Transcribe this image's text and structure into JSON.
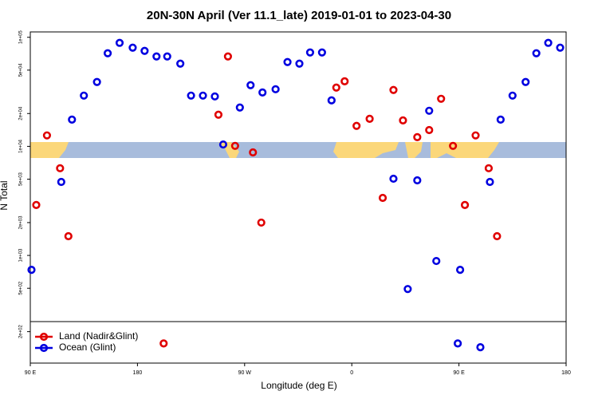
{
  "chart_data": {
    "type": "scatter",
    "title": "20N-30N April (Ver 11.1_late)   2019-01-01 to 2023-04-30",
    "x_label": "Longitude (deg E)",
    "y_label": "N Total",
    "xlim": [
      90,
      540
    ],
    "ylim": [
      103,
      112000
    ],
    "ylog": true,
    "legend": "lower left",
    "xticks": [
      {
        "value": 90,
        "label": "90 E"
      },
      180,
      {
        "value": 270,
        "label": "90 W"
      },
      {
        "value": 360,
        "label": "0"
      },
      {
        "value": 450,
        "label": "90 E"
      },
      {
        "value": 540,
        "label": "180"
      }
    ],
    "yticks": [
      {
        "value": 200,
        "label": "2e+02"
      },
      {
        "value": 500,
        "label": "5e+02"
      },
      {
        "value": 1000,
        "label": "1e+03"
      },
      {
        "value": 2000,
        "label": "2e+03"
      },
      {
        "value": 5000,
        "label": "5e+03"
      },
      {
        "value": 10000,
        "label": "1e+04"
      },
      {
        "value": 20000,
        "label": "2e+04"
      },
      {
        "value": 50000,
        "label": "5e+04"
      },
      {
        "value": 100000,
        "label": "1e+05"
      }
    ],
    "series": [
      {
        "name": "Land (Nadir&Glint)",
        "color": "#e00000",
        "x": [
          95,
          104,
          115,
          122,
          202,
          248,
          256,
          262,
          277,
          284,
          347,
          354,
          364,
          375,
          386,
          395,
          403,
          415,
          425,
          435,
          445,
          455,
          464,
          475,
          482
        ],
        "values": [
          2900,
          12600,
          6300,
          1500,
          156,
          19500,
          66700,
          10100,
          8800,
          2000,
          34600,
          39500,
          15400,
          17900,
          3370,
          32900,
          17300,
          12150,
          14100,
          27300,
          10100,
          2900,
          12600,
          6300,
          1500
        ]
      },
      {
        "name": "Ocean (Glint)",
        "color": "#0000e0",
        "x": [
          91,
          116,
          125,
          135,
          146,
          155,
          165,
          176,
          186,
          196,
          205,
          216,
          225,
          235,
          245,
          252,
          266,
          275,
          285,
          296,
          306,
          316,
          325,
          335,
          343,
          395,
          407,
          415,
          425,
          431,
          449,
          451,
          468,
          476,
          485,
          495,
          506,
          515,
          525,
          535
        ],
        "values": [
          738,
          4720,
          17600,
          29200,
          38900,
          71400,
          88900,
          80300,
          75100,
          66700,
          66700,
          57300,
          29200,
          29200,
          28700,
          10400,
          22700,
          36400,
          31200,
          33400,
          59300,
          57300,
          72600,
          72600,
          26400,
          5050,
          492,
          4880,
          21200,
          889,
          156,
          738,
          144,
          4720,
          17600,
          29200,
          38900,
          71400,
          88900,
          80300
        ]
      }
    ]
  }
}
